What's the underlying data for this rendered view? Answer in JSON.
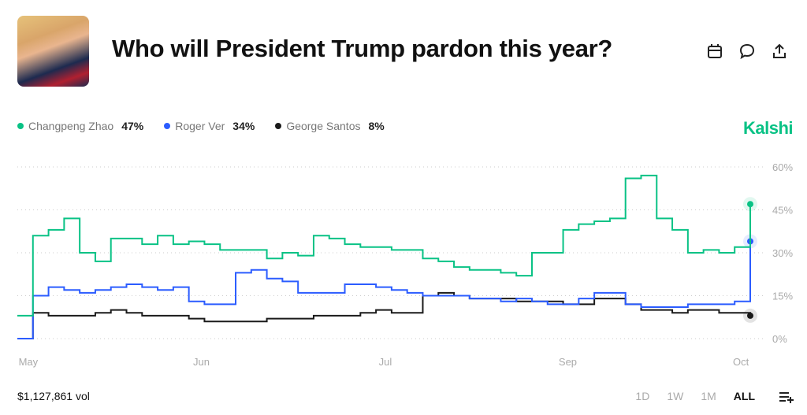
{
  "header": {
    "title": "Who will President Trump pardon this year?",
    "icons": [
      "calendar-icon",
      "comment-icon",
      "share-icon"
    ]
  },
  "brand": "Kalshi",
  "legend": [
    {
      "name": "Changpeng Zhao",
      "pct": "47%",
      "color": "#09c285"
    },
    {
      "name": "Roger Ver",
      "pct": "34%",
      "color": "#2b5cff"
    },
    {
      "name": "George Santos",
      "pct": "8%",
      "color": "#1a1a1a"
    }
  ],
  "footer": {
    "volume": "$1,127,861 vol",
    "ranges": [
      "1D",
      "1W",
      "1M",
      "ALL"
    ],
    "active_range": "ALL"
  },
  "chart_data": {
    "type": "line",
    "ylim": [
      0,
      60
    ],
    "yticks": [
      "60%",
      "45%",
      "30%",
      "15%",
      "0%"
    ],
    "ytick_values": [
      60,
      45,
      30,
      15,
      0
    ],
    "xticks": [
      {
        "label": "May",
        "at": 0.7
      },
      {
        "label": "Jun",
        "at": 11.8
      },
      {
        "label": "Jul",
        "at": 23.6
      },
      {
        "label": "Sep",
        "at": 35.3
      },
      {
        "label": "Oct",
        "at": 46.4
      }
    ],
    "grid": true,
    "legend_position": "top-left",
    "series": [
      {
        "name": "Changpeng Zhao",
        "color": "#09c285",
        "values": [
          8,
          36,
          38,
          42,
          30,
          27,
          35,
          35,
          33,
          36,
          33,
          34,
          33,
          31,
          31,
          31,
          28,
          30,
          29,
          36,
          35,
          33,
          32,
          32,
          31,
          31,
          28,
          27,
          25,
          24,
          24,
          23,
          22,
          30,
          30,
          38,
          40,
          41,
          42,
          56,
          57,
          42,
          38,
          30,
          31,
          30,
          32,
          47
        ]
      },
      {
        "name": "Roger Ver",
        "color": "#2b5cff",
        "values": [
          0,
          15,
          18,
          17,
          16,
          17,
          18,
          19,
          18,
          17,
          18,
          13,
          12,
          12,
          23,
          24,
          21,
          20,
          16,
          16,
          16,
          19,
          19,
          18,
          17,
          16,
          15,
          15,
          15,
          14,
          14,
          13,
          14,
          13,
          12,
          12,
          14,
          16,
          16,
          12,
          11,
          11,
          11,
          12,
          12,
          12,
          13,
          34
        ]
      },
      {
        "name": "George Santos",
        "color": "#1a1a1a",
        "values": [
          0,
          9,
          8,
          8,
          8,
          9,
          10,
          9,
          8,
          8,
          8,
          7,
          6,
          6,
          6,
          6,
          7,
          7,
          7,
          8,
          8,
          8,
          9,
          10,
          9,
          9,
          15,
          16,
          15,
          14,
          14,
          14,
          13,
          13,
          13,
          12,
          12,
          14,
          14,
          12,
          10,
          10,
          9,
          10,
          10,
          9,
          9,
          8
        ]
      }
    ]
  }
}
